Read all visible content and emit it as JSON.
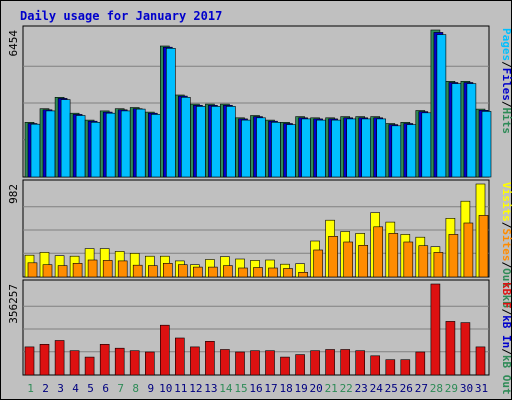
{
  "chart_data": {
    "type": "bar",
    "title": "Daily usage for January 2017",
    "categories": [
      "1",
      "2",
      "3",
      "4",
      "5",
      "6",
      "7",
      "8",
      "9",
      "10",
      "11",
      "12",
      "13",
      "14",
      "15",
      "16",
      "17",
      "18",
      "19",
      "20",
      "21",
      "22",
      "23",
      "24",
      "25",
      "26",
      "27",
      "28",
      "29",
      "30",
      "31"
    ],
    "weekend_days": [
      1,
      7,
      8,
      14,
      15,
      21,
      22,
      28,
      29
    ],
    "colors": {
      "hits": "#2e8b57",
      "files": "#0000cc",
      "pages": "#00bfff",
      "visits": "#ffff00",
      "sites": "#ff8c00",
      "kbin": "#0000cc",
      "kbout": "#2e8b57",
      "kbf": "#dd1111",
      "title": "#0000cc",
      "weekday_label": "#000080",
      "weekend_label": "#2e8b57",
      "plot_bg": "#c0c0c0",
      "frame_bg": "#c0c0c0"
    },
    "panels": [
      {
        "id": "top",
        "ymax_label": "6454",
        "ymax": 6454,
        "legend": [
          {
            "text": "Pages",
            "color": "#00bfff"
          },
          {
            "text": "/",
            "color": "#000000"
          },
          {
            "text": "Files",
            "color": "#0000cc"
          },
          {
            "text": "/",
            "color": "#000000"
          },
          {
            "text": "Hits",
            "color": "#2e8b57"
          }
        ],
        "series": [
          {
            "name": "Hits",
            "color": "#2e8b57",
            "values": [
              2400,
              3000,
              3500,
              2800,
              2500,
              2900,
              3000,
              3050,
              2850,
              5750,
              3600,
              3200,
              3200,
              3200,
              2600,
              2700,
              2500,
              2400,
              2650,
              2600,
              2600,
              2650,
              2650,
              2650,
              2350,
              2400,
              2920,
              6454,
              4200,
              4200,
              2980
            ]
          },
          {
            "name": "Files",
            "color": "#0000cc",
            "values": [
              2350,
              2950,
              3450,
              2750,
              2450,
              2850,
              2950,
              3000,
              2800,
              5700,
              3550,
              3150,
              3150,
              3150,
              2550,
              2650,
              2450,
              2350,
              2600,
              2550,
              2550,
              2600,
              2600,
              2600,
              2300,
              2350,
              2870,
              6350,
              4150,
              4150,
              2930
            ]
          },
          {
            "name": "Pages",
            "color": "#00bfff",
            "values": [
              2320,
              2900,
              3400,
              2700,
              2400,
              2800,
              2900,
              2980,
              2750,
              5650,
              3500,
              3100,
              3100,
              3100,
              2500,
              2600,
              2400,
              2300,
              2550,
              2500,
              2500,
              2550,
              2550,
              2550,
              2250,
              2300,
              2820,
              6250,
              4100,
              4100,
              2880
            ]
          }
        ]
      },
      {
        "id": "middle",
        "ymax_label": "982",
        "ymax": 982,
        "legend": [
          {
            "text": "Visits",
            "color": "#ffff00"
          },
          {
            "text": "/",
            "color": "#000000"
          },
          {
            "text": "Sites",
            "color": "#ff8c00"
          },
          {
            "text": "/",
            "color": "#000000"
          },
          {
            "text": "Out",
            "color": "#2e8b57"
          },
          {
            "text": " ",
            "color": "#000000"
          },
          {
            "text": "kB",
            "color": "#2e8b57"
          }
        ],
        "series": [
          {
            "name": "Visits",
            "color": "#ffff00",
            "values": [
              230,
              260,
              225,
              220,
              300,
              300,
              270,
              250,
              220,
              220,
              170,
              130,
              185,
              215,
              190,
              175,
              180,
              135,
              140,
              380,
              600,
              480,
              460,
              680,
              580,
              450,
              420,
              320,
              620,
              800,
              982
            ]
          },
          {
            "name": "Sites",
            "color": "#ff8c00",
            "values": [
              150,
              130,
              120,
              145,
              180,
              175,
              170,
              125,
              120,
              145,
              130,
              105,
              105,
              120,
              95,
              100,
              95,
              90,
              50,
              285,
              430,
              370,
              335,
              530,
              460,
              370,
              330,
              260,
              450,
              570,
              650
            ]
          }
        ]
      },
      {
        "id": "bottom",
        "ymax_label": "356257",
        "ymax": 356257,
        "legend": [
          {
            "text": "kB F",
            "color": "#dd1111"
          },
          {
            "text": "/",
            "color": "#000000"
          },
          {
            "text": "kB In",
            "color": "#0000cc"
          },
          {
            "text": "/",
            "color": "#000000"
          },
          {
            "text": "kB Out",
            "color": "#2e8b57"
          }
        ],
        "series": [
          {
            "name": "kB F",
            "color": "#dd1111",
            "values": [
              110000,
              120000,
              135000,
              95000,
              70000,
              120000,
              105000,
              95000,
              90000,
              195000,
              145000,
              110000,
              132000,
              100000,
              90000,
              95000,
              95000,
              70000,
              80000,
              95000,
              100000,
              100000,
              95000,
              75000,
              60000,
              60000,
              90000,
              356257,
              210000,
              205000,
              110000
            ]
          }
        ]
      }
    ]
  }
}
